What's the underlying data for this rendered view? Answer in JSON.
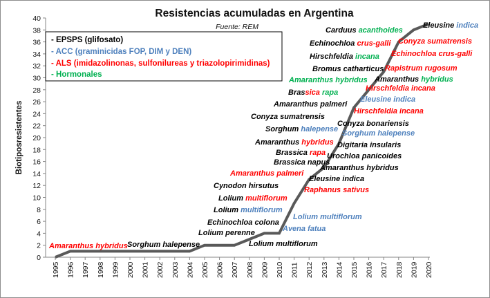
{
  "chart_data": {
    "type": "line",
    "title": "Resistencias acumuladas en Argentina",
    "source": "Fuente: REM",
    "ylabel": "Biotiposresistentes",
    "xlabel": "",
    "ylim": [
      0,
      40
    ],
    "y_ticks": [
      "0",
      "2",
      "4",
      "6",
      "8",
      "10",
      "12",
      "14",
      "16",
      "18",
      "20",
      "22",
      "24",
      "26",
      "28",
      "30",
      "32",
      "34",
      "36",
      "38",
      "40"
    ],
    "x": [
      "1995",
      "1996",
      "1997",
      "1998",
      "1999",
      "2000",
      "2001",
      "2002",
      "2003",
      "2004",
      "2005",
      "2006",
      "2007",
      "2008",
      "2009",
      "2010",
      "2011",
      "2012",
      "2013",
      "2014",
      "2015",
      "2016",
      "2017",
      "2018",
      "2019",
      "2020"
    ],
    "series": [
      {
        "color": "#595959",
        "values": [
          0,
          1,
          1,
          1,
          1,
          1,
          1,
          1,
          1,
          1,
          2,
          2,
          2,
          3,
          4,
          4,
          9,
          13,
          15,
          19,
          25,
          28,
          31,
          36,
          38,
          39
        ]
      }
    ],
    "grid": false,
    "legend_position": "top-left"
  },
  "legend": {
    "items": [
      {
        "label": "- EPSPS (glifosato)",
        "color": "#000000"
      },
      {
        "label": "- ACC (graminicidas FOP, DIM y DEN)",
        "color": "#4f81bd"
      },
      {
        "label": "- ALS (imidazolinonas, sulfonilureas y triazolopirimidinas)",
        "color": "#ff0000"
      },
      {
        "label": "- Hormonales",
        "color": "#00b050"
      }
    ]
  },
  "annotations": [
    {
      "parts": [
        {
          "text": "Amaranthus hybridus",
          "color": "#ff0000"
        }
      ]
    },
    {
      "parts": [
        {
          "text": "Sorghum halepense",
          "color": "#000000"
        }
      ]
    },
    {
      "parts": [
        {
          "text": "Lolium perenne",
          "color": "#000000"
        }
      ]
    },
    {
      "parts": [
        {
          "text": "Echinochloa colona",
          "color": "#000000"
        }
      ]
    },
    {
      "parts": [
        {
          "text": "Lolium multiflorum",
          "color": "#000000"
        }
      ]
    },
    {
      "parts": [
        {
          "text": "Lolium ",
          "color": "#000000"
        },
        {
          "text": "multiflorum",
          "color": "#4f81bd"
        }
      ]
    },
    {
      "parts": [
        {
          "text": "Lolium ",
          "color": "#000000"
        },
        {
          "text": "multiflorum",
          "color": "#ff0000"
        }
      ]
    },
    {
      "parts": [
        {
          "text": "Cynodon hirsutus",
          "color": "#000000"
        }
      ]
    },
    {
      "parts": [
        {
          "text": "Amaranthus palmeri",
          "color": "#ff0000"
        }
      ]
    },
    {
      "parts": [
        {
          "text": "Brassica napus",
          "color": "#000000"
        }
      ]
    },
    {
      "parts": [
        {
          "text": "Brassica ",
          "color": "#000000"
        },
        {
          "text": "rapa",
          "color": "#ff0000"
        }
      ]
    },
    {
      "parts": [
        {
          "text": "Amaranthus ",
          "color": "#000000"
        },
        {
          "text": "hybridus",
          "color": "#ff0000"
        }
      ]
    },
    {
      "parts": [
        {
          "text": "Sorghum ",
          "color": "#000000"
        },
        {
          "text": "halepense",
          "color": "#4f81bd"
        }
      ]
    },
    {
      "parts": [
        {
          "text": "Conyza sumatrensis",
          "color": "#000000"
        }
      ]
    },
    {
      "parts": [
        {
          "text": "Amaranthus palmeri",
          "color": "#000000"
        }
      ]
    },
    {
      "parts": [
        {
          "text": "Bras",
          "color": "#000000"
        },
        {
          "text": "sica",
          "color": "#ff0000"
        },
        {
          "text": " rapa",
          "color": "#00b050"
        }
      ]
    },
    {
      "parts": [
        {
          "text": "Amaranthus hybridus",
          "color": "#00b050"
        }
      ]
    },
    {
      "parts": [
        {
          "text": "Bromus catharticus",
          "color": "#000000"
        }
      ]
    },
    {
      "parts": [
        {
          "text": "Hirschfeldia ",
          "color": "#000000"
        },
        {
          "text": "incana",
          "color": "#00b050"
        }
      ]
    },
    {
      "parts": [
        {
          "text": "Echinochloa ",
          "color": "#000000"
        },
        {
          "text": "crus-galli",
          "color": "#ff0000"
        }
      ]
    },
    {
      "parts": [
        {
          "text": "Carduus ",
          "color": "#000000"
        },
        {
          "text": "acanthoides",
          "color": "#00b050"
        }
      ]
    },
    {
      "parts": [
        {
          "text": "Eleusine ",
          "color": "#000000"
        },
        {
          "text": "indica",
          "color": "#4f81bd"
        }
      ]
    },
    {
      "parts": [
        {
          "text": "Avena fatua",
          "color": "#4f81bd"
        }
      ]
    },
    {
      "parts": [
        {
          "text": "Lolium multiflorum",
          "color": "#4f81bd"
        }
      ]
    },
    {
      "parts": [
        {
          "text": "Raphanus sativus",
          "color": "#ff0000"
        }
      ]
    },
    {
      "parts": [
        {
          "text": "Eleusine indica",
          "color": "#000000"
        }
      ]
    },
    {
      "parts": [
        {
          "text": "Amaranthus hybridus",
          "color": "#000000"
        }
      ]
    },
    {
      "parts": [
        {
          "text": "Urochloa panicoides",
          "color": "#000000"
        }
      ]
    },
    {
      "parts": [
        {
          "text": "Digitaria insularis",
          "color": "#000000"
        }
      ]
    },
    {
      "parts": [
        {
          "text": "Sorghum halepense",
          "color": "#4f81bd"
        }
      ]
    },
    {
      "parts": [
        {
          "text": "Conyza bonariensis",
          "color": "#000000"
        }
      ]
    },
    {
      "parts": [
        {
          "text": "Hirschfeldia incana",
          "color": "#ff0000"
        }
      ]
    },
    {
      "parts": [
        {
          "text": "Eleusine indica",
          "color": "#4f81bd"
        }
      ]
    },
    {
      "parts": [
        {
          "text": "Hirschfeldia incana",
          "color": "#ff0000"
        }
      ]
    },
    {
      "parts": [
        {
          "text": "Amaranthus ",
          "color": "#000000"
        },
        {
          "text": "hybridus",
          "color": "#00b050"
        }
      ]
    },
    {
      "parts": [
        {
          "text": "Rapistrum rugosum",
          "color": "#ff0000"
        }
      ]
    },
    {
      "parts": [
        {
          "text": "Echinochloa crus-galli",
          "color": "#ff0000"
        }
      ]
    },
    {
      "parts": [
        {
          "text": "Conyza sumatrensis",
          "color": "#ff0000"
        }
      ]
    }
  ]
}
